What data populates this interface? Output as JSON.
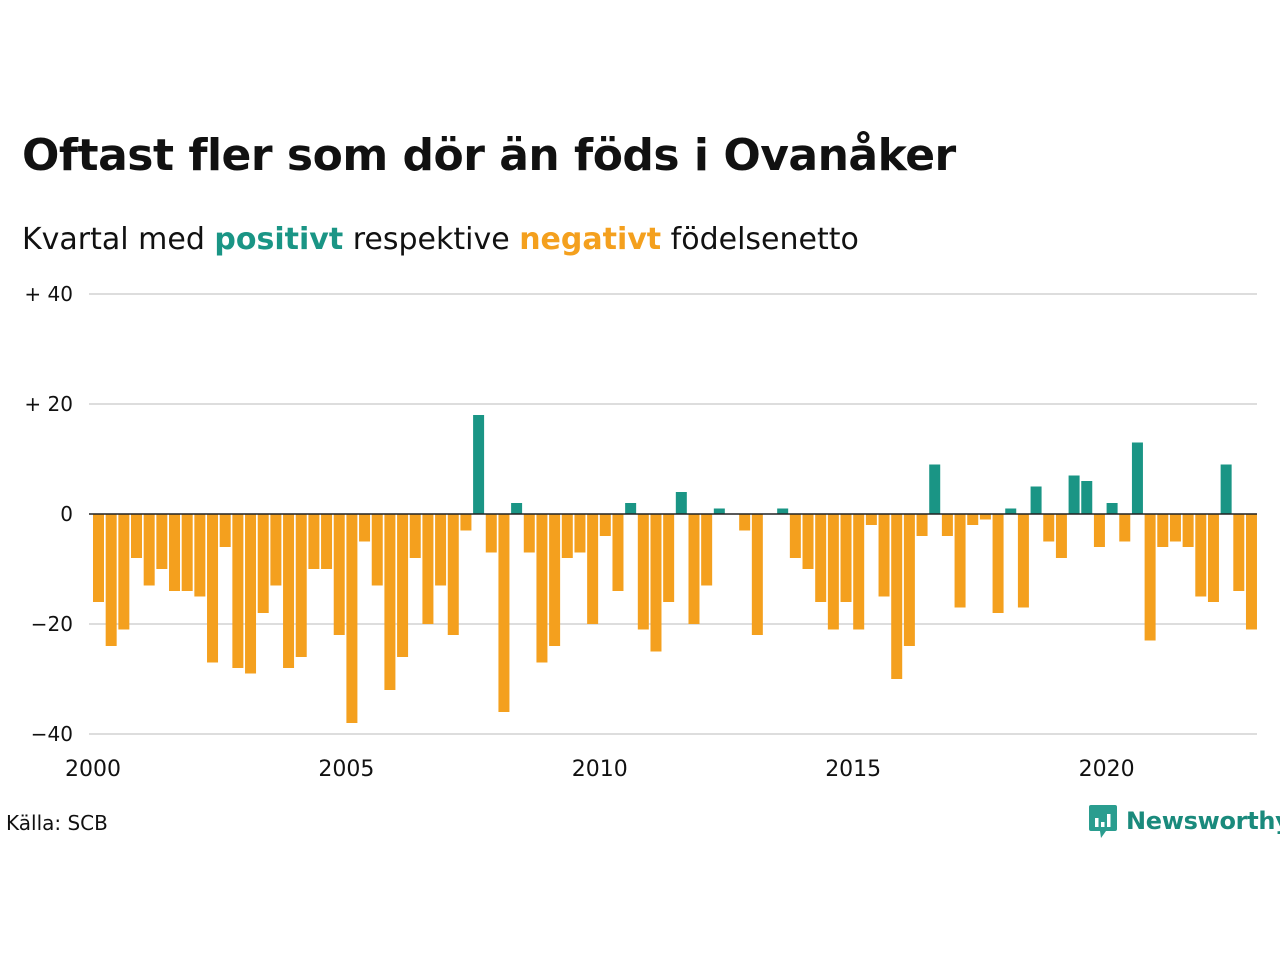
{
  "title": "Oftast fler som dör än föds i Ovanåker",
  "subtitle": {
    "prefix": "Kvartal med ",
    "positive_word": "positivt",
    "middle": " respektive ",
    "negative_word": "negativt",
    "suffix": " födelsenetto"
  },
  "source": "Källa: SCB",
  "brand": "Newsworthy",
  "colors": {
    "positive": "#1a9585",
    "negative": "#f4a01e",
    "grid": "#dddddd",
    "zero": "#222222"
  },
  "chart_data": {
    "type": "bar",
    "x_start": "2000 Q1",
    "ylim": [
      -40,
      40
    ],
    "yticks": [
      {
        "value": 40,
        "label": "+ 40"
      },
      {
        "value": 20,
        "label": "+ 20"
      },
      {
        "value": 0,
        "label": "0"
      },
      {
        "value": -20,
        "label": "−20"
      },
      {
        "value": -40,
        "label": "−40"
      }
    ],
    "xticks": [
      "2000",
      "2005",
      "2010",
      "2015",
      "2020"
    ],
    "values": [
      -16,
      -24,
      -21,
      -8,
      -13,
      -10,
      -14,
      -14,
      -15,
      -27,
      -6,
      -28,
      -29,
      -18,
      -13,
      -28,
      -26,
      -10,
      -10,
      -22,
      -38,
      -5,
      -13,
      -32,
      -26,
      -8,
      -20,
      -13,
      -22,
      -3,
      18,
      -7,
      -36,
      2,
      -7,
      -27,
      -24,
      -8,
      -7,
      -20,
      -4,
      -14,
      2,
      -21,
      -25,
      -16,
      4,
      -20,
      -13,
      1,
      0,
      -3,
      -22,
      0,
      1,
      -8,
      -10,
      -16,
      -21,
      -16,
      -21,
      -2,
      -15,
      -30,
      -24,
      -4,
      9,
      -4,
      -17,
      -2,
      -1,
      -18,
      1,
      -17,
      5,
      -5,
      -8,
      7,
      6,
      -6,
      2,
      -5,
      13,
      -23,
      -6,
      -5,
      -6,
      -15,
      -16,
      9,
      -14,
      -21
    ]
  }
}
